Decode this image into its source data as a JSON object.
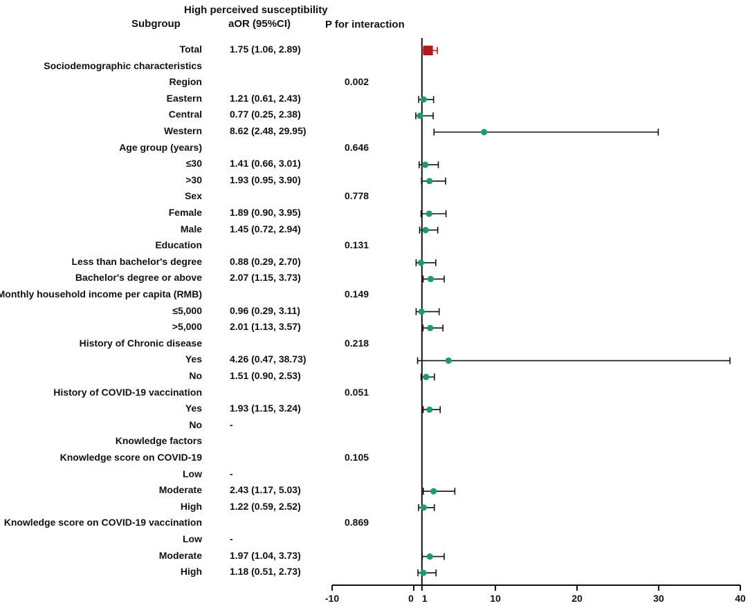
{
  "header": {
    "title": "High perceived susceptibility",
    "subgroup": "Subgroup",
    "aor": "aOR (95%CI)",
    "p": "P for interaction"
  },
  "colors": {
    "point": "#1a9c73",
    "total": "#b01c1c",
    "axis": "#111111"
  },
  "chart_data": {
    "type": "forest",
    "title": "High perceived susceptibility",
    "xlim": [
      -10,
      40
    ],
    "xticks": [
      -10,
      0,
      1,
      10,
      20,
      30,
      40
    ],
    "xtick_labels": [
      "-10",
      "0",
      "1",
      "10",
      "20",
      "30",
      "40"
    ],
    "reference_line": 1,
    "rows": [
      {
        "label": "Total",
        "or_text": "1.75 (1.06, 2.89)",
        "p": "",
        "est": 1.75,
        "lo": 1.06,
        "hi": 2.89,
        "style": "total"
      },
      {
        "label": "Sociodemographic characteristics",
        "or_text": "",
        "p": ""
      },
      {
        "label": "Region",
        "or_text": "",
        "p": "0.002"
      },
      {
        "label": "Eastern",
        "or_text": "1.21 (0.61, 2.43)",
        "p": "",
        "est": 1.21,
        "lo": 0.61,
        "hi": 2.43
      },
      {
        "label": "Central",
        "or_text": "0.77 (0.25, 2.38)",
        "p": "",
        "est": 0.77,
        "lo": 0.25,
        "hi": 2.38
      },
      {
        "label": "Western",
        "or_text": "8.62 (2.48, 29.95)",
        "p": "",
        "est": 8.62,
        "lo": 2.48,
        "hi": 29.95
      },
      {
        "label": "Age group (years)",
        "or_text": "",
        "p": "0.646"
      },
      {
        "label": "≤30",
        "or_text": "1.41 (0.66, 3.01)",
        "p": "",
        "est": 1.41,
        "lo": 0.66,
        "hi": 3.01
      },
      {
        "label": ">30",
        "or_text": "1.93 (0.95, 3.90)",
        "p": "",
        "est": 1.93,
        "lo": 0.95,
        "hi": 3.9
      },
      {
        "label": "Sex",
        "or_text": "",
        "p": "0.778"
      },
      {
        "label": "Female",
        "or_text": "1.89 (0.90, 3.95)",
        "p": "",
        "est": 1.89,
        "lo": 0.9,
        "hi": 3.95
      },
      {
        "label": "Male",
        "or_text": "1.45 (0.72, 2.94)",
        "p": "",
        "est": 1.45,
        "lo": 0.72,
        "hi": 2.94
      },
      {
        "label": "Education",
        "or_text": "",
        "p": "0.131"
      },
      {
        "label": "Less than bachelor's degree",
        "or_text": "0.88 (0.29, 2.70)",
        "p": "",
        "est": 0.88,
        "lo": 0.29,
        "hi": 2.7
      },
      {
        "label": "Bachelor's degree or above",
        "or_text": "2.07 (1.15, 3.73)",
        "p": "",
        "est": 2.07,
        "lo": 1.15,
        "hi": 3.73
      },
      {
        "label": "Monthly household income per capita (RMB)",
        "or_text": "",
        "p": "0.149"
      },
      {
        "label": "≤5,000",
        "or_text": "0.96 (0.29, 3.11)",
        "p": "",
        "est": 0.96,
        "lo": 0.29,
        "hi": 3.11
      },
      {
        "label": ">5,000",
        "or_text": "2.01 (1.13, 3.57)",
        "p": "",
        "est": 2.01,
        "lo": 1.13,
        "hi": 3.57
      },
      {
        "label": "History of Chronic disease",
        "or_text": "",
        "p": "0.218"
      },
      {
        "label": "Yes",
        "or_text": "4.26 (0.47, 38.73)",
        "p": "",
        "est": 4.26,
        "lo": 0.47,
        "hi": 38.73
      },
      {
        "label": "No",
        "or_text": "1.51 (0.90, 2.53)",
        "p": "",
        "est": 1.51,
        "lo": 0.9,
        "hi": 2.53
      },
      {
        "label": "History of COVID-19 vaccination",
        "or_text": "",
        "p": "0.051"
      },
      {
        "label": "Yes",
        "or_text": "1.93 (1.15, 3.24)",
        "p": "",
        "est": 1.93,
        "lo": 1.15,
        "hi": 3.24
      },
      {
        "label": "No",
        "or_text": "-",
        "p": ""
      },
      {
        "label": "Knowledge factors",
        "or_text": "",
        "p": ""
      },
      {
        "label": "Knowledge score on COVID-19",
        "or_text": "",
        "p": "0.105"
      },
      {
        "label": "Low",
        "or_text": "-",
        "p": ""
      },
      {
        "label": "Moderate",
        "or_text": "2.43 (1.17, 5.03)",
        "p": "",
        "est": 2.43,
        "lo": 1.17,
        "hi": 5.03
      },
      {
        "label": "High",
        "or_text": "1.22 (0.59, 2.52)",
        "p": "",
        "est": 1.22,
        "lo": 0.59,
        "hi": 2.52
      },
      {
        "label": "Knowledge score on COVID-19 vaccination",
        "or_text": "",
        "p": "0.869"
      },
      {
        "label": "Low",
        "or_text": "-",
        "p": ""
      },
      {
        "label": "Moderate",
        "or_text": "1.97 (1.04, 3.73)",
        "p": "",
        "est": 1.97,
        "lo": 1.04,
        "hi": 3.73
      },
      {
        "label": "High",
        "or_text": "1.18 (0.51, 2.73)",
        "p": "",
        "est": 1.18,
        "lo": 0.51,
        "hi": 2.73
      }
    ]
  }
}
